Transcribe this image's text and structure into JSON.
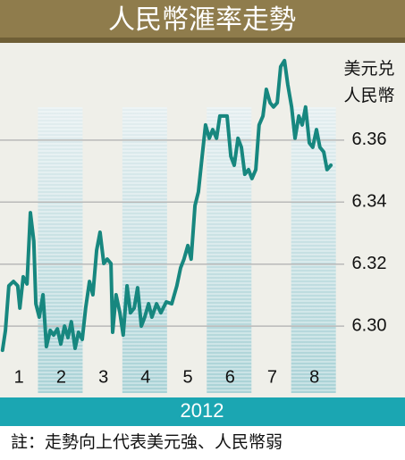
{
  "header": {
    "title": "人民幣滙率走勢"
  },
  "chart_data": {
    "type": "line",
    "y_axis_label": [
      "美元兑",
      "人民幣"
    ],
    "x_axis_label": "2012",
    "x": [
      0.61,
      0.68,
      0.76,
      0.87,
      0.97,
      1.02,
      1.1,
      1.19,
      1.27,
      1.35,
      1.4,
      1.48,
      1.57,
      1.65,
      1.74,
      1.82,
      1.91,
      1.99,
      2.08,
      2.16,
      2.24,
      2.33,
      2.41,
      2.5,
      2.58,
      2.67,
      2.75,
      2.84,
      2.92,
      3.01,
      3.09,
      3.18,
      3.22,
      3.3,
      3.39,
      3.47,
      3.56,
      3.64,
      3.73,
      3.81,
      3.9,
      3.98,
      4.07,
      4.15,
      4.26,
      4.36,
      4.49,
      4.62,
      4.74,
      4.83,
      4.91,
      5.0,
      5.08,
      5.17,
      5.25,
      5.34,
      5.42,
      5.51,
      5.59,
      5.68,
      5.76,
      5.85,
      5.93,
      6.02,
      6.1,
      6.19,
      6.27,
      6.35,
      6.44,
      6.52,
      6.61,
      6.69,
      6.78,
      6.86,
      6.95,
      7.03,
      7.12,
      7.2,
      7.29,
      7.37,
      7.46,
      7.54,
      7.63,
      7.71,
      7.79,
      7.88,
      7.96,
      8.05,
      8.13,
      8.22,
      8.3,
      8.39
    ],
    "series": [
      {
        "color": "#17877f",
        "values": [
          6.2922,
          6.2986,
          6.313,
          6.3144,
          6.313,
          6.3058,
          6.3159,
          6.3136,
          6.3366,
          6.3274,
          6.3072,
          6.3029,
          6.3101,
          6.2934,
          6.2986,
          6.2971,
          6.2991,
          6.2942,
          6.3,
          6.2963,
          6.3014,
          6.2928,
          6.298,
          6.2957,
          6.3058,
          6.3144,
          6.3101,
          6.3245,
          6.3303,
          6.3202,
          6.3216,
          6.3202,
          6.298,
          6.3101,
          6.3043,
          6.2971,
          6.313,
          6.3043,
          6.3058,
          6.3124,
          6.3,
          6.3029,
          6.3072,
          6.3029,
          6.3072,
          6.3043,
          6.3078,
          6.3072,
          6.313,
          6.3188,
          6.3216,
          6.326,
          6.3216,
          6.3389,
          6.3433,
          6.3548,
          6.3649,
          6.3606,
          6.3634,
          6.3606,
          6.3678,
          6.3678,
          6.3678,
          6.3548,
          6.3519,
          6.3606,
          6.3577,
          6.349,
          6.3505,
          6.3476,
          6.3505,
          6.3649,
          6.3678,
          6.3764,
          6.3721,
          6.3707,
          6.3721,
          6.3837,
          6.3857,
          6.3779,
          6.3707,
          6.3606,
          6.3678,
          6.3649,
          6.3707,
          6.3591,
          6.3577,
          6.3634,
          6.3577,
          6.3562,
          6.3505,
          6.3519
        ]
      }
    ],
    "xlim": [
      0.55,
      8.6
    ],
    "xticks": [
      1,
      2,
      3,
      4,
      5,
      6,
      7,
      8
    ],
    "ylim": [
      6.2784,
      6.3914
    ],
    "yticks": [
      {
        "value": 6.3,
        "label": "6.30"
      },
      6.32,
      6.34,
      6.36
    ],
    "grid": true
  },
  "footnote": "註：走勢向上代表美元強、人民幣弱"
}
